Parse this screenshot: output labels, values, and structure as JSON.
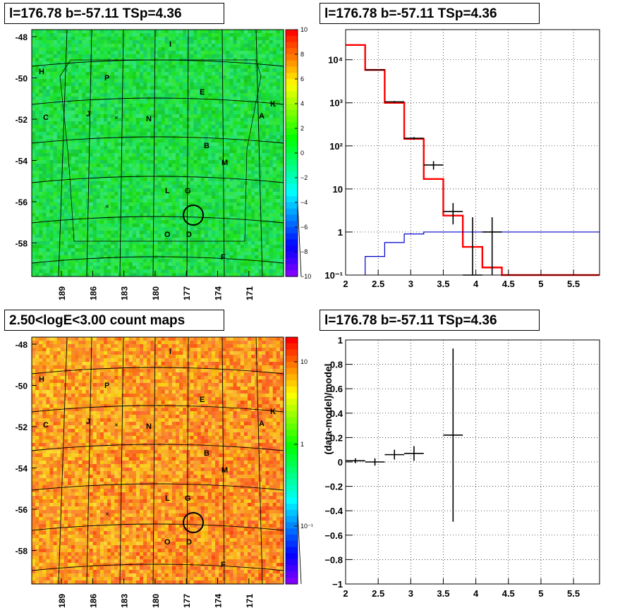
{
  "panels": {
    "tl_title": "l=176.78 b=-57.11 TSp=4.36",
    "tr_title": "l=176.78 b=-57.11 TSp=4.36",
    "bl_title": "2.50<logE<3.00 count maps",
    "br_title": "l=176.78 b=-57.11 TSp=4.36"
  },
  "colors": {
    "red": "#ff0000",
    "blue": "#0000cc",
    "black": "#000000"
  },
  "maps": {
    "y_ticks": [
      "-48",
      "-50",
      "-52",
      "-54",
      "-56",
      "-58"
    ],
    "x_ticks": [
      "189",
      "186",
      "183",
      "180",
      "177",
      "174",
      "171"
    ],
    "source_labels": [
      "I",
      "H",
      "P",
      "E",
      "K",
      "C",
      "J",
      "N",
      "A",
      "B",
      "M",
      "L",
      "G",
      "O",
      "D",
      "F"
    ],
    "top_colorbar_ticks": [
      "10",
      "8",
      "6",
      "4",
      "2",
      "0",
      "−2",
      "−4",
      "−6",
      "−8",
      "−10"
    ],
    "bottom_colorbar_ticks": [
      "10",
      "1",
      "10⁻¹"
    ]
  },
  "chart_data": [
    {
      "type": "line",
      "panel": "spectrum",
      "y_scale": "log",
      "xlim": [
        2,
        5.9
      ],
      "ylim": [
        0.1,
        50000
      ],
      "x_ticks": [
        "2",
        "2.5",
        "3",
        "3.5",
        "4",
        "4.5",
        "5",
        "5.5"
      ],
      "y_ticks": [
        "10⁴",
        "10³",
        "10²",
        "10",
        "1",
        "10⁻¹"
      ],
      "grid": true,
      "series": [
        {
          "style": "histogram",
          "color": "red",
          "edges": [
            2.0,
            2.3,
            2.6,
            2.9,
            3.2,
            3.5,
            3.8,
            4.1,
            4.4,
            5.9
          ],
          "values": [
            22000,
            5800,
            1000,
            145,
            17,
            2.4,
            0.45,
            0.15,
            0.1
          ]
        },
        {
          "style": "histogram",
          "color": "blue",
          "edges": [
            2.3,
            2.6,
            2.9,
            3.2,
            3.5,
            3.8,
            4.1,
            4.4,
            5.9
          ],
          "values": [
            0.27,
            0.57,
            0.9,
            1.0,
            1.0,
            1.0,
            1.0,
            1.0
          ]
        },
        {
          "style": "points",
          "color": "black",
          "x": [
            2.45,
            2.75,
            3.05,
            3.35,
            3.65,
            3.95,
            4.25
          ],
          "y": [
            5800,
            1050,
            150,
            36,
            3.0,
            0.1,
            1.0
          ],
          "y_low": [
            5700,
            1000,
            140,
            28,
            1.5,
            0.1,
            0.1
          ],
          "y_high": [
            5900,
            1100,
            160,
            44,
            4.7,
            2.2,
            2.2
          ],
          "x_err": 0.15
        }
      ]
    },
    {
      "type": "scatter",
      "panel": "residuals",
      "ylabel": "(data-model)/model",
      "xlim": [
        2,
        5.9
      ],
      "ylim": [
        -1,
        1
      ],
      "x_ticks": [
        "2",
        "2.5",
        "3",
        "3.5",
        "4",
        "4.5",
        "5",
        "5.5"
      ],
      "y_ticks": [
        "1",
        "0.8",
        "0.6",
        "0.4",
        "0.2",
        "0",
        "−0.2",
        "−0.4",
        "−0.6",
        "−0.8",
        "−1"
      ],
      "grid": true,
      "series": [
        {
          "color": "black",
          "x": [
            2.15,
            2.45,
            2.75,
            3.05,
            3.65
          ],
          "y": [
            0.01,
            0.0,
            0.06,
            0.07,
            0.22
          ],
          "y_err": [
            0.02,
            0.03,
            0.04,
            0.06,
            0.71
          ],
          "x_err": 0.15
        }
      ]
    }
  ]
}
